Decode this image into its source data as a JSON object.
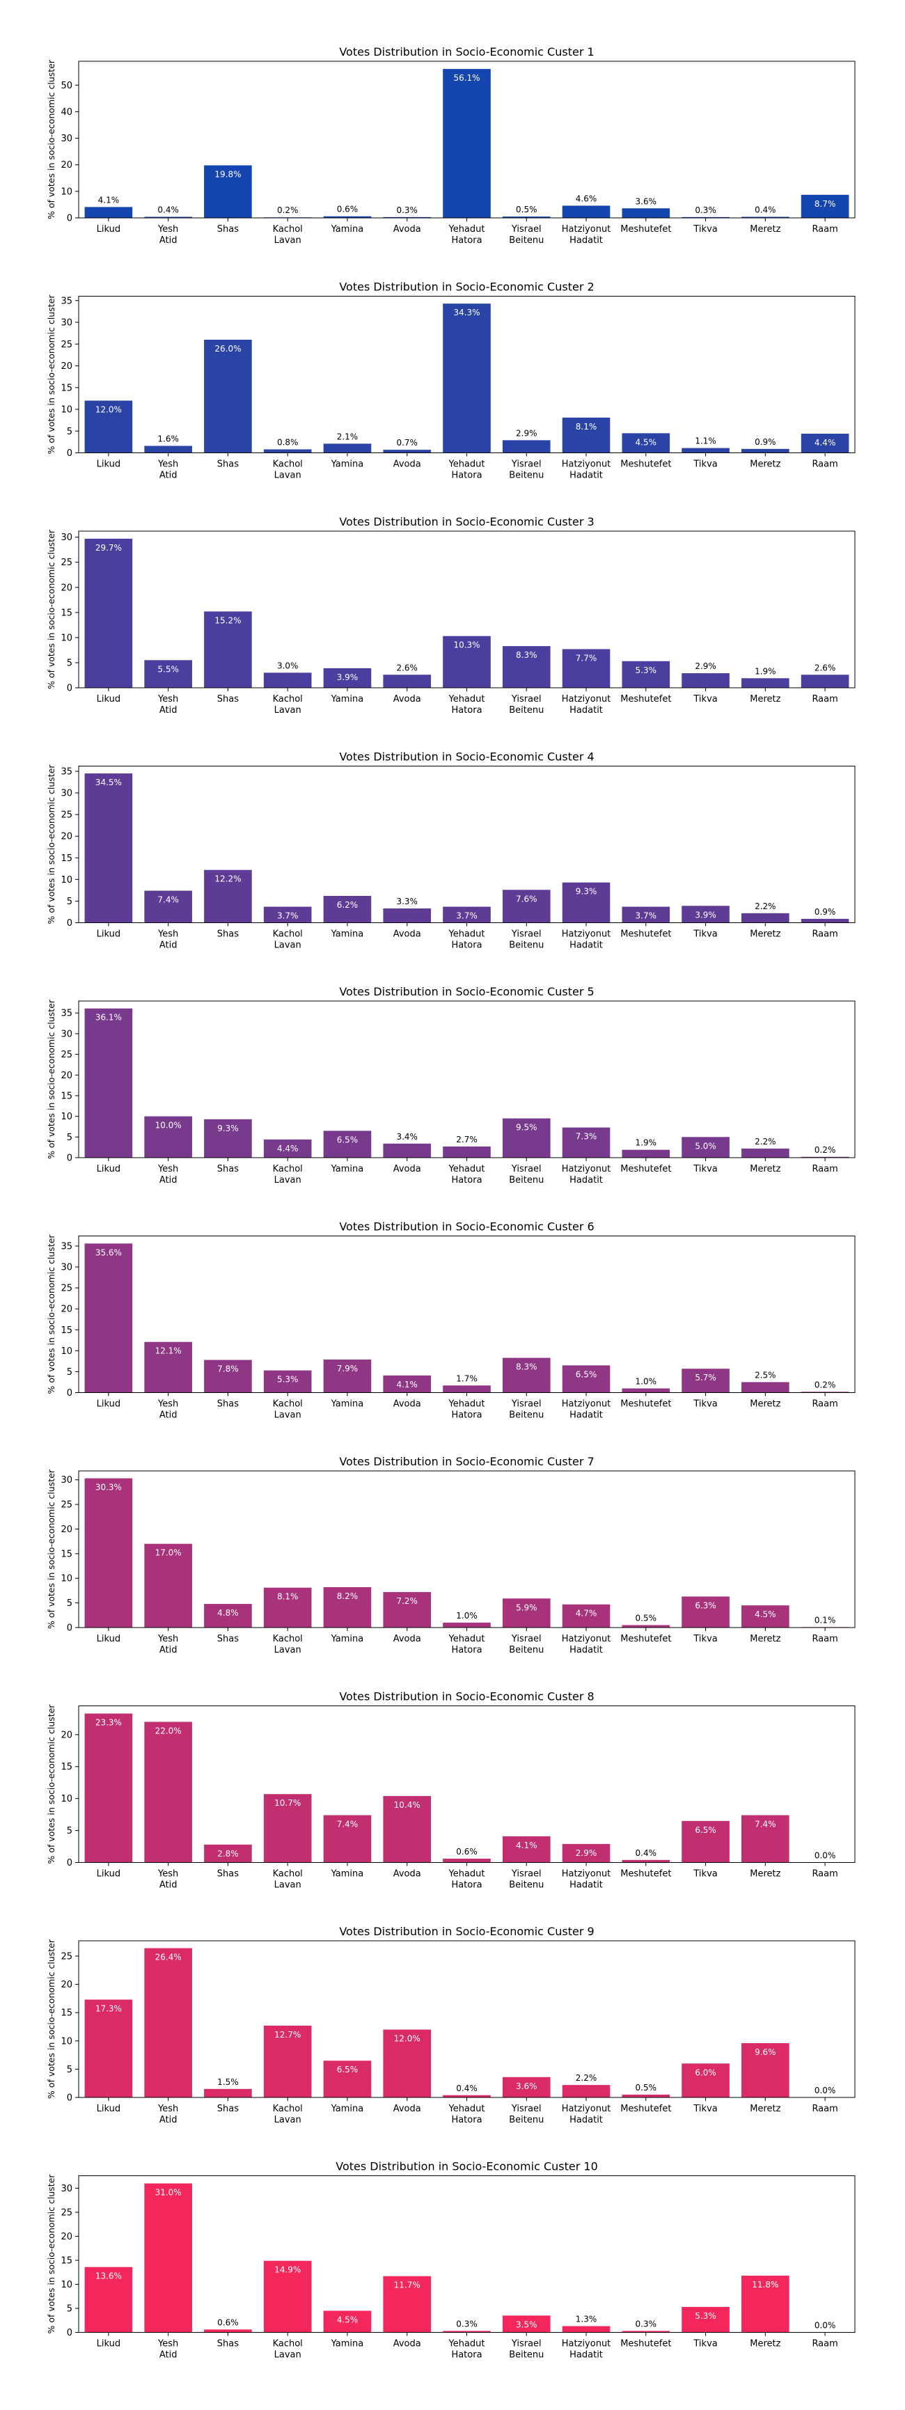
{
  "chart_data": [
    {
      "type": "bar",
      "title": "Votes Distribution in Socio-Economic Custer 1",
      "ylabel": "% of votes in socio-economic cluster",
      "xlabel": "",
      "ylim": [
        0,
        59
      ],
      "yticks": [
        0,
        10,
        20,
        30,
        40,
        50
      ],
      "color": "#1546b0",
      "categories": [
        "Likud",
        "Yesh Atid",
        "Shas",
        "Kachol Lavan",
        "Yamina",
        "Avoda",
        "Yehadut Hatora",
        "Yisrael Beitenu",
        "Hatziyonut Hadatit",
        "Meshutefet",
        "Tikva",
        "Meretz",
        "Raam"
      ],
      "values": [
        4.1,
        0.4,
        19.8,
        0.2,
        0.6,
        0.3,
        56.1,
        0.5,
        4.6,
        3.6,
        0.3,
        0.4,
        8.7
      ],
      "data_labels": [
        "4.1%",
        "0.4%",
        "19.8%",
        "0.2%",
        "0.6%",
        "0.3%",
        "56.1%",
        "0.5%",
        "4.6%",
        "3.6%",
        "0.3%",
        "0.4%",
        "8.7%"
      ]
    },
    {
      "type": "bar",
      "title": "Votes Distribution in Socio-Economic Custer 2",
      "ylabel": "% of votes in socio-economic cluster",
      "xlabel": "",
      "ylim": [
        0,
        36
      ],
      "yticks": [
        0,
        5,
        10,
        15,
        20,
        25,
        30,
        35
      ],
      "color": "#2a44a6",
      "categories": [
        "Likud",
        "Yesh Atid",
        "Shas",
        "Kachol Lavan",
        "Yamina",
        "Avoda",
        "Yehadut Hatora",
        "Yisrael Beitenu",
        "Hatziyonut Hadatit",
        "Meshutefet",
        "Tikva",
        "Meretz",
        "Raam"
      ],
      "values": [
        12.0,
        1.6,
        26.0,
        0.8,
        2.1,
        0.7,
        34.3,
        2.9,
        8.1,
        4.5,
        1.1,
        0.9,
        4.4
      ],
      "data_labels": [
        "12.0%",
        "1.6%",
        "26.0%",
        "0.8%",
        "2.1%",
        "0.7%",
        "34.3%",
        "2.9%",
        "8.1%",
        "4.5%",
        "1.1%",
        "0.9%",
        "4.4%"
      ]
    },
    {
      "type": "bar",
      "title": "Votes Distribution in Socio-Economic Custer 3",
      "ylabel": "% of votes in socio-economic cluster",
      "xlabel": "",
      "ylim": [
        0,
        31.2
      ],
      "yticks": [
        0,
        5,
        10,
        15,
        20,
        25,
        30
      ],
      "color": "#4a3f9e",
      "categories": [
        "Likud",
        "Yesh Atid",
        "Shas",
        "Kachol Lavan",
        "Yamina",
        "Avoda",
        "Yehadut Hatora",
        "Yisrael Beitenu",
        "Hatziyonut Hadatit",
        "Meshutefet",
        "Tikva",
        "Meretz",
        "Raam"
      ],
      "values": [
        29.7,
        5.5,
        15.2,
        3.0,
        3.9,
        2.6,
        10.3,
        8.3,
        7.7,
        5.3,
        2.9,
        1.9,
        2.6
      ],
      "data_labels": [
        "29.7%",
        "5.5%",
        "15.2%",
        "3.0%",
        "3.9%",
        "2.6%",
        "10.3%",
        "8.3%",
        "7.7%",
        "5.3%",
        "2.9%",
        "1.9%",
        "2.6%"
      ]
    },
    {
      "type": "bar",
      "title": "Votes Distribution in Socio-Economic Custer 4",
      "ylabel": "% of votes in socio-economic cluster",
      "xlabel": "",
      "ylim": [
        0,
        36.2
      ],
      "yticks": [
        0,
        5,
        10,
        15,
        20,
        25,
        30,
        35
      ],
      "color": "#5e3c95",
      "categories": [
        "Likud",
        "Yesh Atid",
        "Shas",
        "Kachol Lavan",
        "Yamina",
        "Avoda",
        "Yehadut Hatora",
        "Yisrael Beitenu",
        "Hatziyonut Hadatit",
        "Meshutefet",
        "Tikva",
        "Meretz",
        "Raam"
      ],
      "values": [
        34.5,
        7.4,
        12.2,
        3.7,
        6.2,
        3.3,
        3.7,
        7.6,
        9.3,
        3.7,
        3.9,
        2.2,
        0.9
      ],
      "data_labels": [
        "34.5%",
        "7.4%",
        "12.2%",
        "3.7%",
        "6.2%",
        "3.3%",
        "3.7%",
        "7.6%",
        "9.3%",
        "3.7%",
        "3.9%",
        "2.2%",
        "0.9%"
      ]
    },
    {
      "type": "bar",
      "title": "Votes Distribution in Socio-Economic Custer 5",
      "ylabel": "% of votes in socio-economic cluster",
      "xlabel": "",
      "ylim": [
        0,
        37.9
      ],
      "yticks": [
        0,
        5,
        10,
        15,
        20,
        25,
        30,
        35
      ],
      "color": "#773a8c",
      "categories": [
        "Likud",
        "Yesh Atid",
        "Shas",
        "Kachol Lavan",
        "Yamina",
        "Avoda",
        "Yehadut Hatora",
        "Yisrael Beitenu",
        "Hatziyonut Hadatit",
        "Meshutefet",
        "Tikva",
        "Meretz",
        "Raam"
      ],
      "values": [
        36.1,
        10.0,
        9.3,
        4.4,
        6.5,
        3.4,
        2.7,
        9.5,
        7.3,
        1.9,
        5.0,
        2.2,
        0.2
      ],
      "data_labels": [
        "36.1%",
        "10.0%",
        "9.3%",
        "4.4%",
        "6.5%",
        "3.4%",
        "2.7%",
        "9.5%",
        "7.3%",
        "1.9%",
        "5.0%",
        "2.2%",
        "0.2%"
      ]
    },
    {
      "type": "bar",
      "title": "Votes Distribution in Socio-Economic Custer 6",
      "ylabel": "% of votes in socio-economic cluster",
      "xlabel": "",
      "ylim": [
        0,
        37.4
      ],
      "yticks": [
        0,
        5,
        10,
        15,
        20,
        25,
        30,
        35
      ],
      "color": "#8f3684",
      "categories": [
        "Likud",
        "Yesh Atid",
        "Shas",
        "Kachol Lavan",
        "Yamina",
        "Avoda",
        "Yehadut Hatora",
        "Yisrael Beitenu",
        "Hatziyonut Hadatit",
        "Meshutefet",
        "Tikva",
        "Meretz",
        "Raam"
      ],
      "values": [
        35.6,
        12.1,
        7.8,
        5.3,
        7.9,
        4.1,
        1.7,
        8.3,
        6.5,
        1.0,
        5.7,
        2.5,
        0.2
      ],
      "data_labels": [
        "35.6%",
        "12.1%",
        "7.8%",
        "5.3%",
        "7.9%",
        "4.1%",
        "1.7%",
        "8.3%",
        "6.5%",
        "1.0%",
        "5.7%",
        "2.5%",
        "0.2%"
      ]
    },
    {
      "type": "bar",
      "title": "Votes Distribution in Socio-Economic Custer 7",
      "ylabel": "% of votes in socio-economic cluster",
      "xlabel": "",
      "ylim": [
        0,
        31.8
      ],
      "yticks": [
        0,
        5,
        10,
        15,
        20,
        25,
        30
      ],
      "color": "#a9337b",
      "categories": [
        "Likud",
        "Yesh Atid",
        "Shas",
        "Kachol Lavan",
        "Yamina",
        "Avoda",
        "Yehadut Hatora",
        "Yisrael Beitenu",
        "Hatziyonut Hadatit",
        "Meshutefet",
        "Tikva",
        "Meretz",
        "Raam"
      ],
      "values": [
        30.3,
        17.0,
        4.8,
        8.1,
        8.2,
        7.2,
        1.0,
        5.9,
        4.7,
        0.5,
        6.3,
        4.5,
        0.1
      ],
      "data_labels": [
        "30.3%",
        "17.0%",
        "4.8%",
        "8.1%",
        "8.2%",
        "7.2%",
        "1.0%",
        "5.9%",
        "4.7%",
        "0.5%",
        "6.3%",
        "4.5%",
        "0.1%"
      ]
    },
    {
      "type": "bar",
      "title": "Votes Distribution in Socio-Economic Custer 8",
      "ylabel": "% of votes in socio-economic cluster",
      "xlabel": "",
      "ylim": [
        0,
        24.5
      ],
      "yticks": [
        0,
        5,
        10,
        15,
        20
      ],
      "color": "#c22f70",
      "categories": [
        "Likud",
        "Yesh Atid",
        "Shas",
        "Kachol Lavan",
        "Yamina",
        "Avoda",
        "Yehadut Hatora",
        "Yisrael Beitenu",
        "Hatziyonut Hadatit",
        "Meshutefet",
        "Tikva",
        "Meretz",
        "Raam"
      ],
      "values": [
        23.3,
        22.0,
        2.8,
        10.7,
        7.4,
        10.4,
        0.6,
        4.1,
        2.9,
        0.4,
        6.5,
        7.4,
        0.0
      ],
      "data_labels": [
        "23.3%",
        "22.0%",
        "2.8%",
        "10.7%",
        "7.4%",
        "10.4%",
        "0.6%",
        "4.1%",
        "2.9%",
        "0.4%",
        "6.5%",
        "7.4%",
        "0.0%"
      ]
    },
    {
      "type": "bar",
      "title": "Votes Distribution in Socio-Economic Custer 9",
      "ylabel": "% of votes in socio-economic cluster",
      "xlabel": "",
      "ylim": [
        0,
        27.7
      ],
      "yticks": [
        0,
        5,
        10,
        15,
        20,
        25
      ],
      "color": "#db2b66",
      "categories": [
        "Likud",
        "Yesh Atid",
        "Shas",
        "Kachol Lavan",
        "Yamina",
        "Avoda",
        "Yehadut Hatora",
        "Yisrael Beitenu",
        "Hatziyonut Hadatit",
        "Meshutefet",
        "Tikva",
        "Meretz",
        "Raam"
      ],
      "values": [
        17.3,
        26.4,
        1.5,
        12.7,
        6.5,
        12.0,
        0.4,
        3.6,
        2.2,
        0.5,
        6.0,
        9.6,
        0.0
      ],
      "data_labels": [
        "17.3%",
        "26.4%",
        "1.5%",
        "12.7%",
        "6.5%",
        "12.0%",
        "0.4%",
        "3.6%",
        "2.2%",
        "0.5%",
        "6.0%",
        "9.6%",
        "0.0%"
      ]
    },
    {
      "type": "bar",
      "title": "Votes Distribution in Socio-Economic Custer 10",
      "ylabel": "% of votes in socio-economic cluster",
      "xlabel": "",
      "ylim": [
        0,
        32.6
      ],
      "yticks": [
        0,
        5,
        10,
        15,
        20,
        25,
        30
      ],
      "color": "#f4275c",
      "categories": [
        "Likud",
        "Yesh Atid",
        "Shas",
        "Kachol Lavan",
        "Yamina",
        "Avoda",
        "Yehadut Hatora",
        "Yisrael Beitenu",
        "Hatziyonut Hadatit",
        "Meshutefet",
        "Tikva",
        "Meretz",
        "Raam"
      ],
      "values": [
        13.6,
        31.0,
        0.6,
        14.9,
        4.5,
        11.7,
        0.3,
        3.5,
        1.3,
        0.3,
        5.3,
        11.8,
        0.0
      ],
      "data_labels": [
        "13.6%",
        "31.0%",
        "0.6%",
        "14.9%",
        "4.5%",
        "11.7%",
        "0.3%",
        "3.5%",
        "1.3%",
        "0.3%",
        "5.3%",
        "11.8%",
        "0.0%"
      ]
    }
  ]
}
